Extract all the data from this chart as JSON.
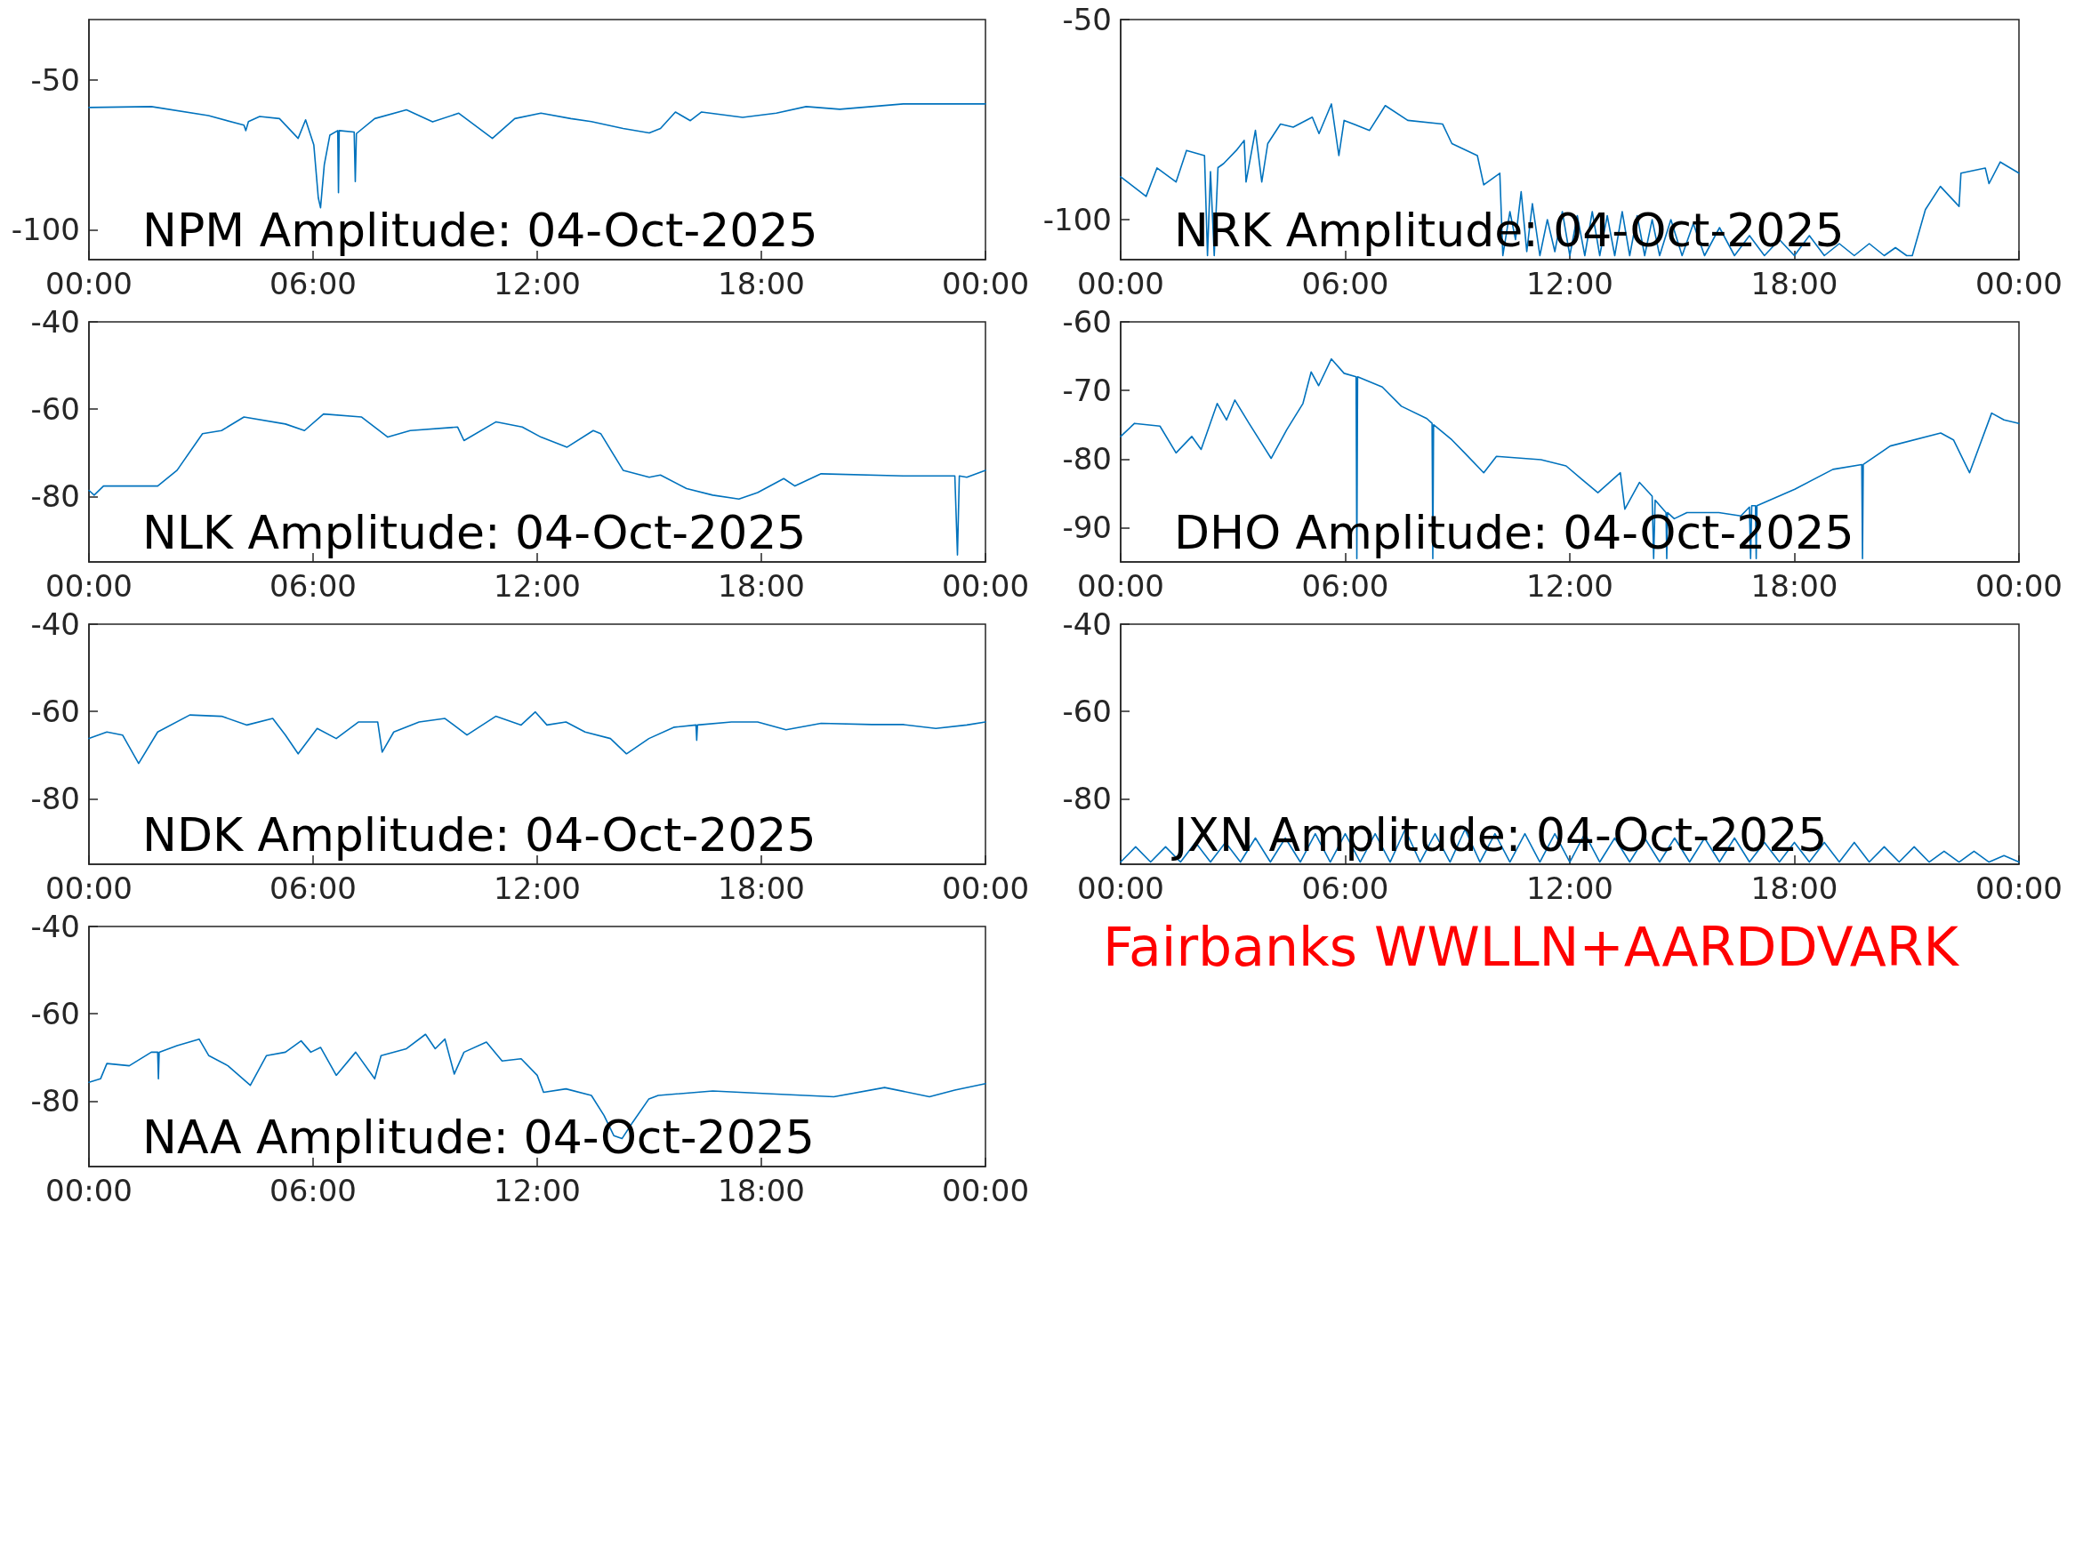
{
  "chart_data": [
    {
      "type": "line",
      "title": "NPM Amplitude: 04-Oct-2025",
      "xlim": [
        0,
        24
      ],
      "xticks": [
        {
          "value": 0,
          "label": "00:00"
        },
        {
          "value": 6,
          "label": "06:00"
        },
        {
          "value": 12,
          "label": "12:00"
        },
        {
          "value": 18,
          "label": "18:00"
        },
        {
          "value": 24,
          "label": "00:00"
        }
      ],
      "ylim": [
        -110,
        -30
      ],
      "yticks": [
        -100,
        -50
      ],
      "grid": false,
      "marker": "none",
      "line_style": "solid",
      "series": [
        {
          "color": "#0072bd",
          "x": [
            0,
            1.67,
            3.2,
            4.15,
            4.2,
            4.27,
            4.57,
            5.1,
            5.6,
            5.8,
            6.02,
            6.14,
            6.2,
            6.3,
            6.45,
            6.66,
            6.68,
            6.7,
            7.1,
            7.13,
            7.16,
            7.65,
            8.5,
            9.2,
            9.9,
            10.8,
            11.4,
            12.1,
            12.9,
            13.45,
            14.3,
            15,
            15.3,
            15.7,
            16.1,
            16.4,
            17.5,
            18.4,
            19.2,
            20.1,
            21.8,
            24
          ],
          "values": [
            -59.3,
            -59,
            -62,
            -65.2,
            -67,
            -64,
            -62.3,
            -63,
            -69.6,
            -63.4,
            -71.8,
            -89.4,
            -92.7,
            -78.4,
            -68.5,
            -67,
            -87.7,
            -67,
            -67.5,
            -84,
            -68,
            -63,
            -60.1,
            -64.1,
            -61.2,
            -69.6,
            -63,
            -61.2,
            -63,
            -64,
            -66.3,
            -67.8,
            -66.3,
            -60.8,
            -63.7,
            -60.8,
            -62.6,
            -61.2,
            -59,
            -59.9,
            -58.1,
            -58.1
          ]
        }
      ]
    },
    {
      "type": "line",
      "title": "NRK Amplitude: 04-Oct-2025",
      "xlim": [
        0,
        24
      ],
      "xticks": [
        {
          "value": 0,
          "label": "00:00"
        },
        {
          "value": 6,
          "label": "06:00"
        },
        {
          "value": 12,
          "label": "12:00"
        },
        {
          "value": 18,
          "label": "18:00"
        },
        {
          "value": 24,
          "label": "00:00"
        }
      ],
      "ylim": [
        -110,
        -50
      ],
      "yticks": [
        -100,
        -50
      ],
      "grid": false,
      "marker": "none",
      "line_style": "solid",
      "series": [
        {
          "color": "#0072bd",
          "x": [
            0,
            0.68,
            0.97,
            1.48,
            1.76,
            2.24,
            2.32,
            2.4,
            2.5,
            2.6,
            2.75,
            3.09,
            3.3,
            3.35,
            3.6,
            3.77,
            3.93,
            4.27,
            4.61,
            5.12,
            5.3,
            5.63,
            5.83,
            5.97,
            6.65,
            7.07,
            7.67,
            8.6,
            8.85,
            9.53,
            9.7,
            10.13,
            10.21,
            10.4,
            10.55,
            10.7,
            10.85,
            11,
            11.2,
            11.4,
            11.6,
            11.8,
            12,
            12.2,
            12.4,
            12.6,
            12.8,
            13,
            13.2,
            13.4,
            13.6,
            13.8,
            14,
            14.2,
            14.4,
            14.7,
            15,
            15.3,
            15.6,
            16,
            16.4,
            16.8,
            17.2,
            17.6,
            18,
            18.4,
            18.8,
            19.2,
            19.6,
            20,
            20.4,
            20.7,
            21,
            21.15,
            21.5,
            21.9,
            22.4,
            22.45,
            23.1,
            23.2,
            23.5,
            24
          ],
          "values": [
            -89.3,
            -94.2,
            -87.1,
            -90.6,
            -82.7,
            -84,
            -109,
            -88,
            -109,
            -87,
            -86,
            -82.7,
            -80.2,
            -90.6,
            -77.7,
            -90.6,
            -81,
            -76.1,
            -76.9,
            -74.4,
            -78.5,
            -71.1,
            -84,
            -75.2,
            -77.7,
            -71.5,
            -75.2,
            -76.1,
            -81,
            -84,
            -91.3,
            -88.4,
            -109,
            -98,
            -105,
            -93,
            -108,
            -96,
            -109,
            -100,
            -108,
            -98,
            -109,
            -99,
            -109,
            -98,
            -109,
            -99,
            -109,
            -98,
            -109,
            -99,
            -109,
            -100,
            -109,
            -100,
            -109,
            -101,
            -109,
            -102,
            -109,
            -104,
            -109,
            -105,
            -109,
            -104,
            -109,
            -106,
            -109,
            -106,
            -109,
            -107,
            -109,
            -109,
            -97.5,
            -91.7,
            -96.7,
            -88.4,
            -87.1,
            -91,
            -85.6,
            -88.4
          ]
        }
      ]
    },
    {
      "type": "line",
      "title": "NLK Amplitude: 04-Oct-2025",
      "xlim": [
        0,
        24
      ],
      "xticks": [
        {
          "value": 0,
          "label": "00:00"
        },
        {
          "value": 6,
          "label": "06:00"
        },
        {
          "value": 12,
          "label": "12:00"
        },
        {
          "value": 18,
          "label": "18:00"
        },
        {
          "value": 24,
          "label": "00:00"
        }
      ],
      "ylim": [
        -95,
        -40
      ],
      "yticks": [
        -80,
        -60,
        -40
      ],
      "grid": false,
      "marker": "none",
      "line_style": "solid",
      "series": [
        {
          "color": "#0072bd",
          "x": [
            0,
            0.14,
            0.39,
            1.84,
            2.36,
            3.04,
            3.55,
            4.15,
            5.26,
            5.77,
            6.28,
            7.3,
            8,
            8.6,
            9.87,
            10.04,
            10.9,
            11.6,
            12.1,
            12.8,
            13.5,
            13.7,
            14.3,
            15,
            15.3,
            16,
            16.7,
            17.4,
            17.9,
            18.6,
            18.9,
            19.6,
            21.8,
            23.18,
            23.25,
            23.3,
            23.5,
            24
          ],
          "values": [
            -78.6,
            -79.7,
            -77.6,
            -77.6,
            -74,
            -65.6,
            -64.9,
            -61.8,
            -63.4,
            -64.9,
            -61.1,
            -61.8,
            -66.4,
            -64.9,
            -64.1,
            -67.2,
            -62.9,
            -64.1,
            -66.4,
            -68.7,
            -64.9,
            -65.6,
            -74,
            -75.6,
            -75.1,
            -78.2,
            -79.7,
            -80.6,
            -79.1,
            -75.9,
            -77.6,
            -74.8,
            -75.3,
            -75.3,
            -93.4,
            -75.3,
            -75.6,
            -74
          ]
        }
      ]
    },
    {
      "type": "line",
      "title": "DHO Amplitude: 04-Oct-2025",
      "xlim": [
        0,
        24
      ],
      "xticks": [
        {
          "value": 0,
          "label": "00:00"
        },
        {
          "value": 6,
          "label": "06:00"
        },
        {
          "value": 12,
          "label": "12:00"
        },
        {
          "value": 18,
          "label": "18:00"
        },
        {
          "value": 24,
          "label": "00:00"
        }
      ],
      "ylim": [
        -95,
        -60
      ],
      "yticks": [
        -90,
        -80,
        -70,
        -60
      ],
      "grid": false,
      "marker": "none",
      "line_style": "solid",
      "series": [
        {
          "color": "#0072bd",
          "x": [
            0,
            0.37,
            1.05,
            1.48,
            1.9,
            2.15,
            2.58,
            2.83,
            3.05,
            3.43,
            4.02,
            4.44,
            4.87,
            5.09,
            5.29,
            5.63,
            5.97,
            6.29,
            6.31,
            6.33,
            6.99,
            7.5,
            8.18,
            8.32,
            8.34,
            8.36,
            8.85,
            9.19,
            9.7,
            10.04,
            11.23,
            11.9,
            12.33,
            12.75,
            13.35,
            13.47,
            13.86,
            14.2,
            14.24,
            14.28,
            14.57,
            14.59,
            14.61,
            14.79,
            15.13,
            15.98,
            16.57,
            16.8,
            16.83,
            16.86,
            16.96,
            16.98,
            17,
            18.01,
            19.03,
            19.8,
            19.82,
            19.84,
            20.56,
            21.91,
            22.25,
            22.68,
            23.27,
            23.6,
            24
          ],
          "values": [
            -76.7,
            -74.8,
            -75.2,
            -79.1,
            -76.7,
            -78.6,
            -71.9,
            -74.3,
            -71.4,
            -74.8,
            -79.9,
            -75.7,
            -71.9,
            -67.3,
            -69.3,
            -65.4,
            -67.5,
            -68,
            -94.5,
            -68,
            -69.5,
            -72.3,
            -74.1,
            -74.8,
            -94.5,
            -75,
            -77.2,
            -79.1,
            -82,
            -79.6,
            -80.1,
            -81,
            -83,
            -84.9,
            -82,
            -87.3,
            -83.4,
            -85.4,
            -94.5,
            -86,
            -87.8,
            -94.5,
            -87.8,
            -88.7,
            -87.8,
            -87.8,
            -88.3,
            -87,
            -94.5,
            -86.8,
            -86.8,
            -94.5,
            -86.8,
            -84.4,
            -81.5,
            -80.8,
            -94.5,
            -80.8,
            -78.1,
            -76.2,
            -77.2,
            -82,
            -73.3,
            -74.3,
            -74.8
          ]
        }
      ]
    },
    {
      "type": "line",
      "title": "NDK Amplitude: 04-Oct-2025",
      "xlim": [
        0,
        24
      ],
      "xticks": [
        {
          "value": 0,
          "label": "00:00"
        },
        {
          "value": 6,
          "label": "06:00"
        },
        {
          "value": 12,
          "label": "12:00"
        },
        {
          "value": 18,
          "label": "18:00"
        },
        {
          "value": 24,
          "label": "00:00"
        }
      ],
      "ylim": [
        -95,
        -40
      ],
      "yticks": [
        -80,
        -60,
        -40
      ],
      "grid": false,
      "marker": "none",
      "line_style": "solid",
      "series": [
        {
          "color": "#0072bd",
          "x": [
            0,
            0.48,
            0.9,
            1.33,
            1.84,
            2.7,
            3.55,
            4.23,
            4.92,
            5.26,
            5.6,
            6.11,
            6.62,
            7.22,
            7.73,
            7.85,
            8.16,
            8.84,
            9.53,
            10.12,
            10.89,
            11.57,
            11.95,
            12.26,
            12.77,
            13.28,
            13.96,
            14.39,
            14.99,
            15.67,
            16.25,
            16.27,
            16.29,
            17.2,
            17.9,
            18.66,
            19.6,
            20.96,
            21.8,
            22.67,
            23.5,
            24
          ],
          "values": [
            -66.2,
            -64.7,
            -65.4,
            -71.9,
            -64.7,
            -60.8,
            -61.1,
            -63.1,
            -61.6,
            -65.4,
            -69.7,
            -63.9,
            -66.2,
            -62.4,
            -62.4,
            -69.3,
            -64.7,
            -62.4,
            -61.6,
            -65.4,
            -61.1,
            -63.1,
            -60.1,
            -63.1,
            -62.4,
            -64.7,
            -66.2,
            -69.7,
            -66.2,
            -63.6,
            -63.1,
            -66.6,
            -63.1,
            -62.4,
            -62.4,
            -64.2,
            -62.7,
            -63,
            -63,
            -63.9,
            -63.1,
            -62.4
          ]
        }
      ]
    },
    {
      "type": "line",
      "title": "JXN Amplitude: 04-Oct-2025",
      "xlim": [
        0,
        24
      ],
      "xticks": [
        {
          "value": 0,
          "label": "00:00"
        },
        {
          "value": 6,
          "label": "06:00"
        },
        {
          "value": 12,
          "label": "12:00"
        },
        {
          "value": 18,
          "label": "18:00"
        },
        {
          "value": 24,
          "label": "00:00"
        }
      ],
      "ylim": [
        -95,
        -40
      ],
      "yticks": [
        -80,
        -60,
        -40
      ],
      "grid": false,
      "marker": "none",
      "line_style": "solid",
      "series": [
        {
          "color": "#0072bd",
          "x": [
            0,
            0.4,
            0.8,
            1.2,
            1.6,
            2,
            2.4,
            2.8,
            3.2,
            3.6,
            4,
            4.4,
            4.8,
            5.2,
            5.6,
            6,
            6.4,
            6.8,
            7.2,
            7.6,
            8,
            8.4,
            8.8,
            9.2,
            9.6,
            10,
            10.4,
            10.8,
            11.2,
            11.6,
            12,
            12.4,
            12.8,
            13.2,
            13.6,
            14,
            14.4,
            14.8,
            15.2,
            15.6,
            16,
            16.4,
            16.8,
            17.2,
            17.6,
            18,
            18.4,
            18.8,
            19.2,
            19.6,
            20,
            20.4,
            20.8,
            21.2,
            21.6,
            22,
            22.4,
            22.8,
            23.2,
            23.6,
            24
          ],
          "values": [
            -94.5,
            -91,
            -94.5,
            -91,
            -94.5,
            -90,
            -94.5,
            -90,
            -94.5,
            -89,
            -94.5,
            -89,
            -94.5,
            -88,
            -94.5,
            -88,
            -94.5,
            -88,
            -94.5,
            -87,
            -94.5,
            -88,
            -94.5,
            -87,
            -94.5,
            -88,
            -94.5,
            -88,
            -94.5,
            -88,
            -94.5,
            -88,
            -94.5,
            -89,
            -94.5,
            -89,
            -94.5,
            -89,
            -94.5,
            -89,
            -94.5,
            -89,
            -94.5,
            -90,
            -94.5,
            -90,
            -94.5,
            -90,
            -94.5,
            -90,
            -94.5,
            -91,
            -94.5,
            -91,
            -94.5,
            -92,
            -94.5,
            -92,
            -94.5,
            -93,
            -94.5
          ]
        }
      ]
    },
    {
      "type": "line",
      "title": "NAA Amplitude: 04-Oct-2025",
      "xlim": [
        0,
        24
      ],
      "xticks": [
        {
          "value": 0,
          "label": "00:00"
        },
        {
          "value": 6,
          "label": "06:00"
        },
        {
          "value": 12,
          "label": "12:00"
        },
        {
          "value": 18,
          "label": "18:00"
        },
        {
          "value": 24,
          "label": "00:00"
        }
      ],
      "ylim": [
        -95,
        -40
      ],
      "yticks": [
        -80,
        -60,
        -40
      ],
      "grid": false,
      "marker": "none",
      "line_style": "solid",
      "series": [
        {
          "color": "#0072bd",
          "x": [
            0,
            0.31,
            0.48,
            1.08,
            1.67,
            1.84,
            1.86,
            1.88,
            2.36,
            2.95,
            3.21,
            3.72,
            4.32,
            4.75,
            5.26,
            5.68,
            5.94,
            6.2,
            6.62,
            7.14,
            7.65,
            7.82,
            8.5,
            9.01,
            9.27,
            9.53,
            9.78,
            10.04,
            10.64,
            11.06,
            11.57,
            12,
            12.17,
            12.77,
            13.45,
            13.79,
            14.05,
            14.27,
            14.56,
            14.99,
            15.24,
            16.7,
            18.4,
            19.94,
            21.3,
            22.5,
            23.18,
            24
          ],
          "values": [
            -75.7,
            -74.9,
            -71.4,
            -71.9,
            -68.8,
            -68.8,
            -74.9,
            -68.8,
            -67.3,
            -65.8,
            -69.6,
            -71.9,
            -76.4,
            -69.6,
            -68.8,
            -66.2,
            -68.8,
            -67.7,
            -74.1,
            -68.8,
            -74.9,
            -69.6,
            -68,
            -64.7,
            -68,
            -65.8,
            -73.8,
            -68.8,
            -66.5,
            -70.8,
            -70.3,
            -74.1,
            -78,
            -77.2,
            -78.7,
            -83.3,
            -87.9,
            -88.6,
            -84.8,
            -79.5,
            -78.7,
            -77.7,
            -78.4,
            -79,
            -76.9,
            -79,
            -77.5,
            -76
          ]
        }
      ]
    },
    {
      "type": "other",
      "annotations": [
        "Fairbanks WWLLN+AARDDVARK"
      ]
    }
  ]
}
